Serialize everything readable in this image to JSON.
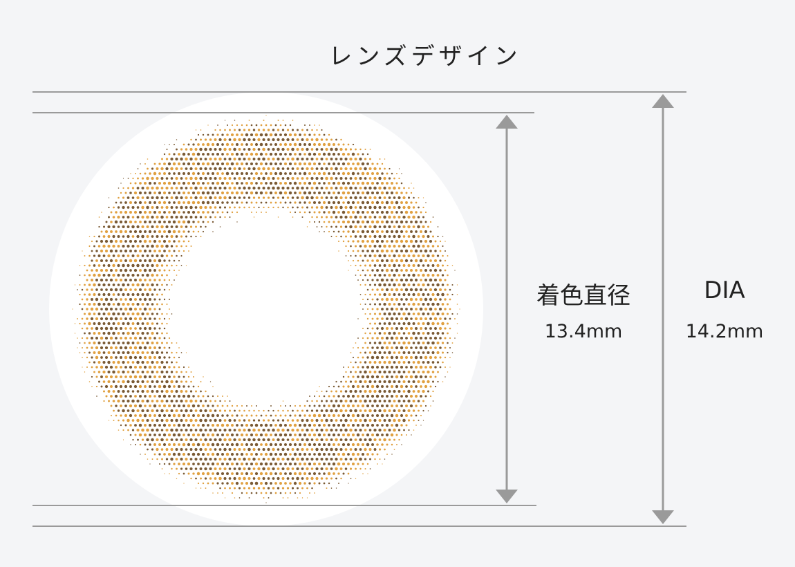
{
  "title": "レンズデザイン",
  "colored_diameter": {
    "label": "着色直径",
    "value": "13.4mm"
  },
  "dia": {
    "label": "DIA",
    "value": "14.2mm"
  },
  "colors": {
    "background": "#f4f5f7",
    "lens": "#ffffff",
    "line": "#9a9a9a",
    "dot_dark": "#7a5a34",
    "dot_light": "#e0a040"
  }
}
